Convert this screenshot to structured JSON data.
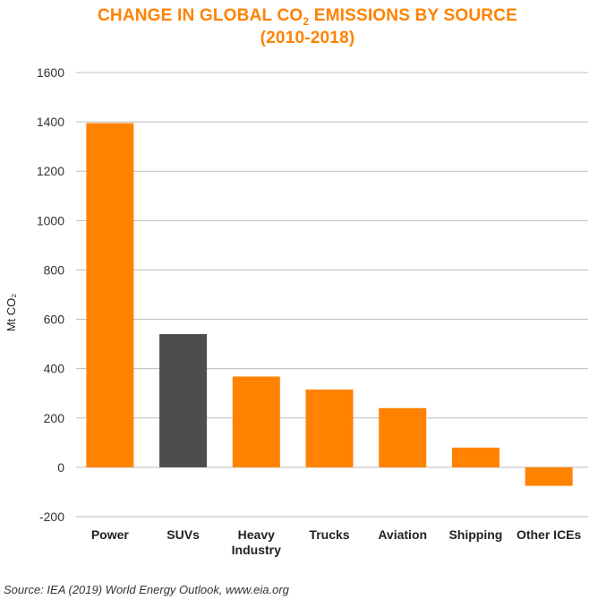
{
  "title": {
    "line1_before": "CHANGE IN GLOBAL CO",
    "line1_subscript": "2",
    "line1_after": " EMISSIONS BY SOURCE",
    "line2": "(2010-2018)",
    "color": "#FF8200"
  },
  "source": "Source: IEA (2019) World Energy Outlook, www.eia.org",
  "chart_data": {
    "type": "bar",
    "title": "CHANGE IN GLOBAL CO₂ EMISSIONS BY SOURCE (2010-2018)",
    "ylabel": "Mt CO₂",
    "xlabel": "",
    "ylim": [
      -200,
      1600
    ],
    "yticks": [
      -200,
      0,
      200,
      400,
      600,
      800,
      1000,
      1200,
      1400,
      1600
    ],
    "grid": true,
    "categories": [
      [
        "Power"
      ],
      [
        "SUVs"
      ],
      [
        "Heavy",
        "Industry"
      ],
      [
        "Trucks"
      ],
      [
        "Aviation"
      ],
      [
        "Shipping"
      ],
      [
        "Other ICEs"
      ]
    ],
    "values": [
      1395,
      540,
      368,
      315,
      240,
      80,
      -75
    ],
    "colors": [
      "#FF8200",
      "#4D4D4D",
      "#FF8200",
      "#FF8200",
      "#FF8200",
      "#FF8200",
      "#FF8200"
    ]
  }
}
